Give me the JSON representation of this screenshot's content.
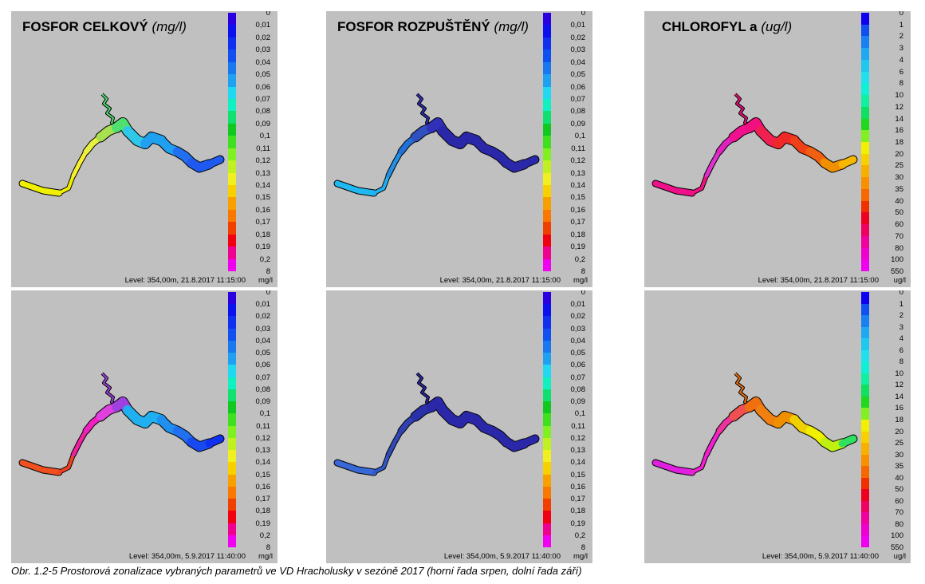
{
  "figure": {
    "caption": "Obr. 1.2-5 Prostorová zonalizace vybraných parametrů ve VD Hracholusky v sezóně 2017 (horní řada srpen, dolní řada září)"
  },
  "legends": {
    "phosphorus": {
      "labels": [
        "0",
        "0,01",
        "0,02",
        "0,03",
        "0,04",
        "0,05",
        "0,06",
        "0,07",
        "0,08",
        "0,09",
        "0,1",
        "0,11",
        "0,12",
        "0,13",
        "0,14",
        "0,15",
        "0,16",
        "0,17",
        "0,18",
        "0,19",
        "0,2",
        "8"
      ],
      "colors": [
        "#2a00e0",
        "#0a10ee",
        "#1030f0",
        "#1050f0",
        "#1878f0",
        "#20a0f0",
        "#20d8f0",
        "#10f0c0",
        "#10e070",
        "#10c820",
        "#40e020",
        "#80f020",
        "#c0f020",
        "#f0f020",
        "#f8d000",
        "#f8a000",
        "#f87800",
        "#f04000",
        "#f00010",
        "#f00090",
        "#f000f0"
      ],
      "unit": "mg/l"
    },
    "chlorophyll": {
      "labels": [
        "0",
        "1",
        "2",
        "3",
        "4",
        "6",
        "8",
        "10",
        "12",
        "14",
        "16",
        "18",
        "20",
        "25",
        "30",
        "35",
        "40",
        "50",
        "60",
        "70",
        "80",
        "100",
        "550"
      ],
      "colors": [
        "#1000f0",
        "#1050f0",
        "#1880f0",
        "#20a8f0",
        "#20c8f0",
        "#20e0f0",
        "#10f0d8",
        "#10f0a0",
        "#10e060",
        "#20d820",
        "#80f020",
        "#f0f000",
        "#f8d000",
        "#f8b000",
        "#f89000",
        "#f86800",
        "#f03000",
        "#f00020",
        "#f00060",
        "#f000a0",
        "#f000d0",
        "#f000f0"
      ],
      "unit": "ug/l"
    }
  },
  "panels": [
    {
      "id": "tp-aug",
      "title": "FOSFOR CELKOVÝ",
      "title_unit": "(mg/l)",
      "legend": "phosphorus",
      "level_text": "Level: 354,00m, 21.8.2017 11:15:00",
      "segments": [
        "#f0f000",
        "#f0f000",
        "#f8f030",
        "#e8f040",
        "#a8e050",
        "#50e070",
        "#30c8e8",
        "#20a0f0",
        "#20a0f0",
        "#2070f0",
        "#1e5af0",
        "#1e5af0"
      ]
    },
    {
      "id": "dp-aug",
      "title": "FOSFOR ROZPUŠTĚNÝ",
      "title_unit": "(mg/l)",
      "legend": "phosphorus",
      "level_text": "Level: 354,00m, 21.8.2017 11:15:00",
      "segments": [
        "#20b8f0",
        "#20b0f0",
        "#2090e8",
        "#2070d8",
        "#3050c0",
        "#3030b8",
        "#2a28a8",
        "#2a28a8",
        "#2a28a8",
        "#2a28a8",
        "#2a28a8",
        "#2a28a8"
      ]
    },
    {
      "id": "chl-aug",
      "title": "CHLOROFYL a",
      "title_unit": "(ug/l)",
      "legend": "chlorophyll",
      "level_text": "Level: 354,00m, 21.8.2017 11:15:00",
      "segments": [
        "#f0108a",
        "#f01080",
        "#e030d0",
        "#e020c0",
        "#f01090",
        "#f01080",
        "#f02050",
        "#f02828",
        "#f04018",
        "#f06010",
        "#f09000",
        "#f8b800"
      ]
    },
    {
      "id": "tp-sep",
      "title": "",
      "title_unit": "",
      "legend": "phosphorus",
      "level_text": "Level: 354,00m, 5.9.2017 11:40:00",
      "segments": [
        "#f05020",
        "#f04020",
        "#f020a0",
        "#f020c0",
        "#e040e0",
        "#a040e0",
        "#20b0f0",
        "#20b0f0",
        "#2090f0",
        "#2070f0",
        "#1848f0",
        "#1030f0"
      ]
    },
    {
      "id": "dp-sep",
      "title": "",
      "title_unit": "",
      "legend": "phosphorus",
      "level_text": "Level: 354,00m, 5.9.2017 11:40:00",
      "segments": [
        "#3868d8",
        "#3058c8",
        "#3048b8",
        "#3040b0",
        "#2a30a8",
        "#2a28a8",
        "#2a28a8",
        "#2a28a8",
        "#2a28a8",
        "#2a28a8",
        "#2a28a8",
        "#2a28a8"
      ]
    },
    {
      "id": "chl-sep",
      "title": "",
      "title_unit": "",
      "legend": "chlorophyll",
      "level_text": "Level: 354,00m, 5.9.2017 11:40:00",
      "segments": [
        "#e020e0",
        "#f020d0",
        "#f020d0",
        "#f030a0",
        "#f05050",
        "#f07010",
        "#f08010",
        "#f09000",
        "#f0d000",
        "#f0f000",
        "#c0f010",
        "#30e060"
      ]
    }
  ]
}
